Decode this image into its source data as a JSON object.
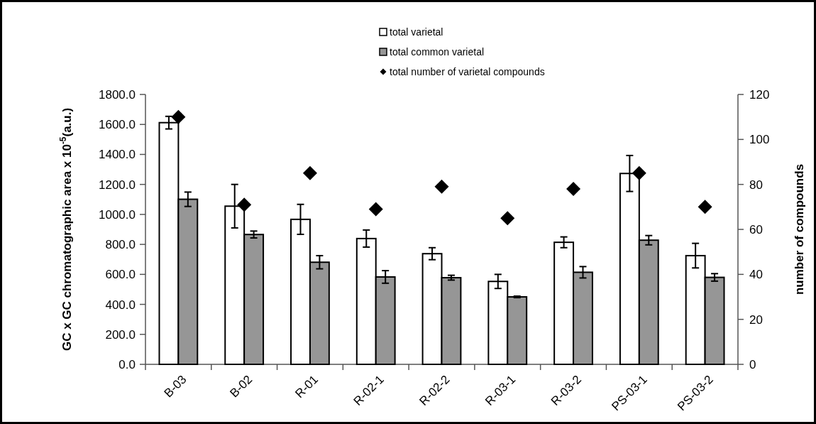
{
  "chart_data": {
    "type": "bar",
    "categories": [
      "B-03",
      "B-02",
      "R-01",
      "R-02-1",
      "R-02-2",
      "R-03-1",
      "R-03-2",
      "PS-03-1",
      "PS-03-2"
    ],
    "ylabel": "GC x GC chromatographic area x 10$^{-5}$(a.u.)",
    "y2label": "number of compounds",
    "ylim": [
      0,
      1800
    ],
    "yticks": [
      {
        "value": 0,
        "label": "0.0"
      },
      {
        "value": 200,
        "label": "200.0"
      },
      {
        "value": 400,
        "label": "400.0"
      },
      {
        "value": 600,
        "label": "600.0"
      },
      {
        "value": 800,
        "label": "800.0"
      },
      {
        "value": 1000,
        "label": "1000.0"
      },
      {
        "value": 1200,
        "label": "1200.0"
      },
      {
        "value": 1400,
        "label": "1400.0"
      },
      {
        "value": 1600,
        "label": "1600.0"
      },
      {
        "value": 1800,
        "label": "1800.0"
      }
    ],
    "y2lim": [
      0,
      120
    ],
    "y2ticks": [
      0,
      20,
      40,
      60,
      80,
      100,
      120
    ],
    "legend": "top",
    "grid": false,
    "series": [
      {
        "name": "total varietal",
        "color": "#ffffff",
        "values": [
          1612,
          1055,
          967,
          839,
          738,
          553,
          814,
          1273,
          725
        ],
        "errors": [
          42,
          145,
          100,
          57,
          40,
          47,
          36,
          120,
          82
        ]
      },
      {
        "name": "total common varietal",
        "color": "#969696",
        "values": [
          1101,
          866,
          681,
          583,
          578,
          450,
          614,
          828,
          580
        ],
        "errors": [
          48,
          23,
          44,
          42,
          16,
          5,
          38,
          31,
          25
        ]
      },
      {
        "name": "total number of varietal compounds",
        "type": "scatter",
        "axis": "y2",
        "marker": "diamond",
        "color": "#000000",
        "values": [
          110,
          71,
          85,
          69,
          79,
          65,
          78,
          85,
          70
        ]
      }
    ]
  }
}
